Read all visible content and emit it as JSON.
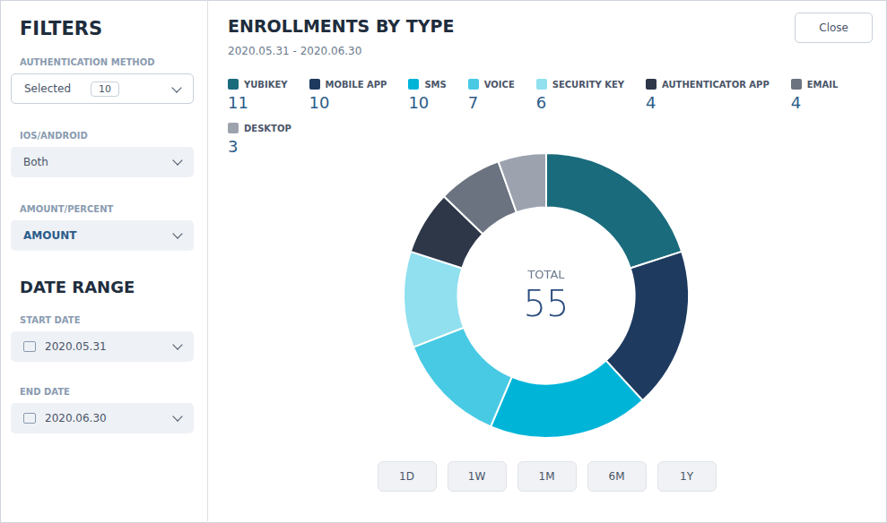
{
  "chart_data": {
    "type": "doughnut",
    "title": "ENROLLMENTS BY TYPE",
    "subtitle": "2020.05.31 - 2020.06.30",
    "categories": [
      "YUBIKEY",
      "MOBILE APP",
      "SMS",
      "VOICE",
      "SECURITY KEY",
      "AUTHENTICATOR APP",
      "EMAIL",
      "DESKTOP"
    ],
    "values": [
      11,
      10,
      10,
      7,
      6,
      4,
      4,
      3
    ],
    "colors": [
      "#1a6b7c",
      "#1e3a5f",
      "#00b4d8",
      "#48cae4",
      "#90e0ef",
      "#2d3748",
      "#6b7280",
      "#9ca3af"
    ],
    "legend": "top",
    "annotations": [
      "FILTERS",
      "AUTHENTICATION METHOD",
      "Selected",
      "10",
      "IOS/ANDROID",
      "Both",
      "AMOUNT/PERCENT",
      "AMOUNT",
      "DATE RANGE",
      "START DATE",
      "2020.05.31",
      "END DATE",
      "2020.06.30",
      "Close",
      "TOTAL",
      "55",
      "1D",
      "1W",
      "1M",
      "6M",
      "1Y"
    ]
  }
}
